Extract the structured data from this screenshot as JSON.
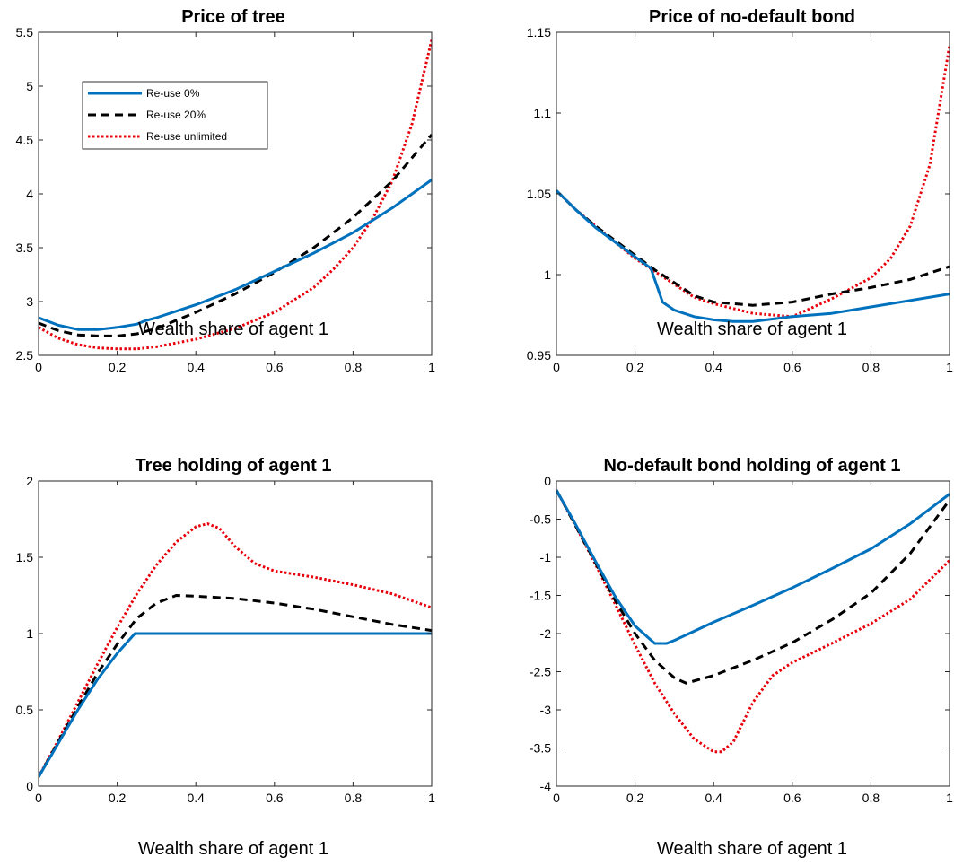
{
  "colors": {
    "reuse_0": "#0072BD",
    "reuse_20": "#000000",
    "reuse_unlimited": "#E8000B"
  },
  "legend": {
    "placement": "top-left of first panel",
    "entries": [
      "Re-use 0%",
      "Re-use 20%",
      "Re-use unlimited"
    ]
  },
  "chart_data": [
    {
      "type": "line",
      "title": "Price of tree",
      "xlabel": "Wealth share of agent 1",
      "ylabel": "",
      "xlim": [
        0,
        1
      ],
      "ylim": [
        2.5,
        5.5
      ],
      "xticks": [
        0,
        0.2,
        0.4,
        0.6,
        0.8,
        1
      ],
      "xtick_labels": [
        "0",
        "0.2",
        "0.4",
        "0.6",
        "0.8",
        "1"
      ],
      "yticks": [
        2.5,
        3,
        3.5,
        4,
        4.5,
        5,
        5.5
      ],
      "ytick_labels": [
        "2.5",
        "3",
        "3.5",
        "4",
        "4.5",
        "5",
        "5.5"
      ],
      "grid": false,
      "series": [
        {
          "name": "Re-use 0%",
          "x": [
            0,
            0.05,
            0.1,
            0.15,
            0.2,
            0.25,
            0.27,
            0.3,
            0.4,
            0.5,
            0.6,
            0.7,
            0.8,
            0.9,
            1.0
          ],
          "y": [
            2.85,
            2.78,
            2.74,
            2.74,
            2.76,
            2.79,
            2.82,
            2.85,
            2.97,
            3.11,
            3.28,
            3.45,
            3.64,
            3.87,
            4.13
          ]
        },
        {
          "name": "Re-use 20%",
          "x": [
            0,
            0.05,
            0.1,
            0.15,
            0.2,
            0.25,
            0.3,
            0.4,
            0.5,
            0.6,
            0.7,
            0.8,
            0.9,
            1.0
          ],
          "y": [
            2.8,
            2.73,
            2.69,
            2.68,
            2.68,
            2.7,
            2.75,
            2.9,
            3.07,
            3.27,
            3.5,
            3.78,
            4.12,
            4.55
          ]
        },
        {
          "name": "Re-use unlimited",
          "x": [
            0,
            0.05,
            0.1,
            0.15,
            0.2,
            0.25,
            0.3,
            0.4,
            0.5,
            0.6,
            0.7,
            0.75,
            0.8,
            0.85,
            0.9,
            0.95,
            1.0
          ],
          "y": [
            2.76,
            2.66,
            2.6,
            2.57,
            2.56,
            2.56,
            2.58,
            2.65,
            2.75,
            2.9,
            3.13,
            3.3,
            3.5,
            3.77,
            4.12,
            4.65,
            5.43
          ]
        }
      ]
    },
    {
      "type": "line",
      "title": "Price of no-default bond",
      "xlabel": "Wealth share of agent 1",
      "ylabel": "",
      "xlim": [
        0,
        1
      ],
      "ylim": [
        0.95,
        1.15
      ],
      "xticks": [
        0,
        0.2,
        0.4,
        0.6,
        0.8,
        1
      ],
      "xtick_labels": [
        "0",
        "0.2",
        "0.4",
        "0.6",
        "0.8",
        "1"
      ],
      "yticks": [
        0.95,
        1.0,
        1.05,
        1.1,
        1.15
      ],
      "ytick_labels": [
        "0.95",
        "1",
        "1.05",
        "1.1",
        "1.15"
      ],
      "grid": false,
      "series": [
        {
          "name": "Re-use 0%",
          "x": [
            0,
            0.05,
            0.1,
            0.15,
            0.2,
            0.24,
            0.25,
            0.27,
            0.3,
            0.35,
            0.4,
            0.45,
            0.5,
            0.6,
            0.7,
            0.8,
            0.9,
            1.0
          ],
          "y": [
            1.052,
            1.04,
            1.029,
            1.02,
            1.011,
            1.004,
            0.997,
            0.983,
            0.978,
            0.974,
            0.972,
            0.971,
            0.971,
            0.974,
            0.976,
            0.98,
            0.984,
            0.988
          ]
        },
        {
          "name": "Re-use 20%",
          "x": [
            0,
            0.05,
            0.1,
            0.15,
            0.2,
            0.25,
            0.3,
            0.35,
            0.4,
            0.5,
            0.6,
            0.7,
            0.8,
            0.9,
            1.0
          ],
          "y": [
            1.052,
            1.04,
            1.03,
            1.021,
            1.012,
            1.003,
            0.995,
            0.987,
            0.983,
            0.981,
            0.983,
            0.988,
            0.992,
            0.997,
            1.005
          ]
        },
        {
          "name": "Re-use unlimited",
          "x": [
            0,
            0.05,
            0.1,
            0.15,
            0.2,
            0.25,
            0.3,
            0.35,
            0.4,
            0.5,
            0.6,
            0.7,
            0.8,
            0.85,
            0.9,
            0.95,
            1.0
          ],
          "y": [
            1.052,
            1.04,
            1.03,
            1.02,
            1.01,
            1.002,
            0.994,
            0.986,
            0.982,
            0.976,
            0.974,
            0.985,
            0.998,
            1.01,
            1.03,
            1.068,
            1.142
          ]
        }
      ]
    },
    {
      "type": "line",
      "title": "Tree holding of agent 1",
      "xlabel": "Wealth share of agent 1",
      "ylabel": "",
      "xlim": [
        0,
        1
      ],
      "ylim": [
        0,
        2
      ],
      "xticks": [
        0,
        0.2,
        0.4,
        0.6,
        0.8,
        1
      ],
      "xtick_labels": [
        "0",
        "0.2",
        "0.4",
        "0.6",
        "0.8",
        "1"
      ],
      "yticks": [
        0,
        0.5,
        1,
        1.5,
        2
      ],
      "ytick_labels": [
        "0",
        "0.5",
        "1",
        "1.5",
        "2"
      ],
      "grid": false,
      "series": [
        {
          "name": "Re-use 0%",
          "x": [
            0,
            0.05,
            0.1,
            0.15,
            0.2,
            0.245,
            0.3,
            0.4,
            0.5,
            0.6,
            0.7,
            0.8,
            0.9,
            1.0
          ],
          "y": [
            0.06,
            0.28,
            0.5,
            0.7,
            0.87,
            1.0,
            1.0,
            1.0,
            1.0,
            1.0,
            1.0,
            1.0,
            1.0,
            1.0
          ]
        },
        {
          "name": "Re-use 20%",
          "x": [
            0,
            0.05,
            0.1,
            0.15,
            0.2,
            0.25,
            0.3,
            0.35,
            0.4,
            0.5,
            0.6,
            0.7,
            0.8,
            0.9,
            1.0
          ],
          "y": [
            0.06,
            0.29,
            0.52,
            0.74,
            0.93,
            1.1,
            1.2,
            1.25,
            1.245,
            1.23,
            1.2,
            1.16,
            1.11,
            1.06,
            1.02
          ]
        },
        {
          "name": "Re-use unlimited",
          "x": [
            0,
            0.05,
            0.1,
            0.15,
            0.2,
            0.25,
            0.3,
            0.35,
            0.4,
            0.43,
            0.46,
            0.5,
            0.55,
            0.6,
            0.7,
            0.8,
            0.9,
            1.0
          ],
          "y": [
            0.06,
            0.3,
            0.55,
            0.8,
            1.04,
            1.26,
            1.45,
            1.6,
            1.7,
            1.72,
            1.69,
            1.57,
            1.46,
            1.41,
            1.37,
            1.32,
            1.26,
            1.17
          ]
        }
      ]
    },
    {
      "type": "line",
      "title": "No-default bond holding of agent 1",
      "xlabel": "Wealth share of agent 1",
      "ylabel": "",
      "xlim": [
        0,
        1
      ],
      "ylim": [
        -4,
        0
      ],
      "xticks": [
        0,
        0.2,
        0.4,
        0.6,
        0.8,
        1
      ],
      "xtick_labels": [
        "0",
        "0.2",
        "0.4",
        "0.6",
        "0.8",
        "1"
      ],
      "yticks": [
        -4,
        -3.5,
        -3,
        -2.5,
        -2,
        -1.5,
        -1,
        -0.5,
        0
      ],
      "ytick_labels": [
        "-4",
        "-3.5",
        "-3",
        "-2.5",
        "-2",
        "-1.5",
        "-1",
        "-0.5",
        "0"
      ],
      "grid": false,
      "series": [
        {
          "name": "Re-use 0%",
          "x": [
            0,
            0.05,
            0.1,
            0.15,
            0.2,
            0.25,
            0.28,
            0.3,
            0.4,
            0.5,
            0.6,
            0.7,
            0.8,
            0.9,
            1.0
          ],
          "y": [
            -0.12,
            -0.58,
            -1.06,
            -1.52,
            -1.9,
            -2.13,
            -2.13,
            -2.09,
            -1.85,
            -1.63,
            -1.4,
            -1.15,
            -0.89,
            -0.56,
            -0.17
          ]
        },
        {
          "name": "Re-use 20%",
          "x": [
            0,
            0.05,
            0.1,
            0.15,
            0.2,
            0.25,
            0.3,
            0.33,
            0.4,
            0.5,
            0.6,
            0.7,
            0.8,
            0.9,
            1.0
          ],
          "y": [
            -0.12,
            -0.6,
            -1.08,
            -1.57,
            -2.0,
            -2.35,
            -2.58,
            -2.65,
            -2.55,
            -2.35,
            -2.12,
            -1.82,
            -1.47,
            -0.95,
            -0.25
          ]
        },
        {
          "name": "Re-use unlimited",
          "x": [
            0,
            0.05,
            0.1,
            0.15,
            0.2,
            0.25,
            0.3,
            0.35,
            0.4,
            0.42,
            0.45,
            0.5,
            0.55,
            0.6,
            0.7,
            0.8,
            0.9,
            1.0
          ],
          "y": [
            -0.12,
            -0.6,
            -1.1,
            -1.62,
            -2.15,
            -2.65,
            -3.05,
            -3.38,
            -3.55,
            -3.55,
            -3.42,
            -2.9,
            -2.55,
            -2.38,
            -2.13,
            -1.87,
            -1.55,
            -1.04
          ]
        }
      ]
    }
  ]
}
